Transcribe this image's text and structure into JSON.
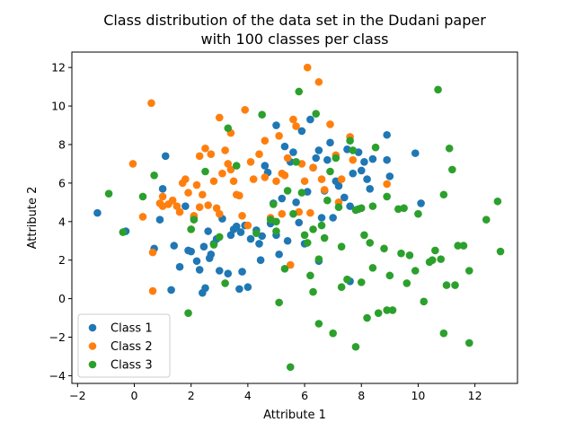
{
  "chart_data": {
    "type": "scatter",
    "title": "Class distribution of the data set in the Dudani paper\nwith 100 classes per class",
    "xlabel": "Attribute 1",
    "ylabel": "Attribute 2",
    "xlim": [
      -2.2,
      13.5
    ],
    "ylim": [
      -4.4,
      12.8
    ],
    "xticks": [
      -2,
      0,
      2,
      4,
      6,
      8,
      10,
      12
    ],
    "yticks": [
      -4,
      -2,
      0,
      2,
      4,
      6,
      8,
      10,
      12
    ],
    "grid": false,
    "legend_position": "lower-left",
    "series": [
      {
        "name": "Class 1",
        "color": "#1f77b4",
        "points": [
          [
            -1.3,
            4.45
          ],
          [
            -0.3,
            3.5
          ],
          [
            0.7,
            2.6
          ],
          [
            0.9,
            4.1
          ],
          [
            1.0,
            5.7
          ],
          [
            1.1,
            7.4
          ],
          [
            1.3,
            0.45
          ],
          [
            1.4,
            2.75
          ],
          [
            1.6,
            1.65
          ],
          [
            1.8,
            4.8
          ],
          [
            1.9,
            2.5
          ],
          [
            2.0,
            2.45
          ],
          [
            2.1,
            4.2
          ],
          [
            2.2,
            1.95
          ],
          [
            2.3,
            1.5
          ],
          [
            2.4,
            0.3
          ],
          [
            2.45,
            2.7
          ],
          [
            2.5,
            0.55
          ],
          [
            2.6,
            3.5
          ],
          [
            2.65,
            2.1
          ],
          [
            2.7,
            2.3
          ],
          [
            2.8,
            2.85
          ],
          [
            2.9,
            3.1
          ],
          [
            3.0,
            1.45
          ],
          [
            3.1,
            4.15
          ],
          [
            3.3,
            1.3
          ],
          [
            3.4,
            3.3
          ],
          [
            3.5,
            3.6
          ],
          [
            3.6,
            3.75
          ],
          [
            3.7,
            0.5
          ],
          [
            3.75,
            3.45
          ],
          [
            3.8,
            1.4
          ],
          [
            3.9,
            3.8
          ],
          [
            4.0,
            0.6
          ],
          [
            4.1,
            3.1
          ],
          [
            4.3,
            3.55
          ],
          [
            4.4,
            2.85
          ],
          [
            4.45,
            2.0
          ],
          [
            4.5,
            3.25
          ],
          [
            4.6,
            6.9
          ],
          [
            4.7,
            6.55
          ],
          [
            4.8,
            3.9
          ],
          [
            4.9,
            4.95
          ],
          [
            5.0,
            3.3
          ],
          [
            5.0,
            9.0
          ],
          [
            5.1,
            2.3
          ],
          [
            5.2,
            5.2
          ],
          [
            5.3,
            7.9
          ],
          [
            5.4,
            3.0
          ],
          [
            5.5,
            7.1
          ],
          [
            5.6,
            7.6
          ],
          [
            5.7,
            5.0
          ],
          [
            5.8,
            3.95
          ],
          [
            5.9,
            8.7
          ],
          [
            6.0,
            2.85
          ],
          [
            6.1,
            5.55
          ],
          [
            6.2,
            9.3
          ],
          [
            6.3,
            6.8
          ],
          [
            6.4,
            7.3
          ],
          [
            6.5,
            1.95
          ],
          [
            6.5,
            7.7
          ],
          [
            6.6,
            4.2
          ],
          [
            6.7,
            5.6
          ],
          [
            6.8,
            7.2
          ],
          [
            6.9,
            8.1
          ],
          [
            7.0,
            4.2
          ],
          [
            7.1,
            6.1
          ],
          [
            7.2,
            5.85
          ],
          [
            7.4,
            5.25
          ],
          [
            7.5,
            7.75
          ],
          [
            7.6,
            0.9
          ],
          [
            7.6,
            4.8
          ],
          [
            7.7,
            6.5
          ],
          [
            7.9,
            7.6
          ],
          [
            8.0,
            6.65
          ],
          [
            8.1,
            7.1
          ],
          [
            8.2,
            6.2
          ],
          [
            8.3,
            5.7
          ],
          [
            8.4,
            7.25
          ],
          [
            8.9,
            8.5
          ],
          [
            8.9,
            7.2
          ],
          [
            9.0,
            6.35
          ],
          [
            9.9,
            7.55
          ],
          [
            10.1,
            4.95
          ]
        ]
      },
      {
        "name": "Class 2",
        "color": "#ff7f0e",
        "points": [
          [
            -0.05,
            7.0
          ],
          [
            0.3,
            4.25
          ],
          [
            0.6,
            10.15
          ],
          [
            0.65,
            2.4
          ],
          [
            0.65,
            0.4
          ],
          [
            0.9,
            4.95
          ],
          [
            1.0,
            5.3
          ],
          [
            1.2,
            4.9
          ],
          [
            1.35,
            5.1
          ],
          [
            1.5,
            4.8
          ],
          [
            1.6,
            4.5
          ],
          [
            1.7,
            6.0
          ],
          [
            1.8,
            6.2
          ],
          [
            1.9,
            5.5
          ],
          [
            2.0,
            3.6
          ],
          [
            2.1,
            4.3
          ],
          [
            2.2,
            5.9
          ],
          [
            2.3,
            7.4
          ],
          [
            2.4,
            5.4
          ],
          [
            2.5,
            7.8
          ],
          [
            2.6,
            4.85
          ],
          [
            2.7,
            7.5
          ],
          [
            2.8,
            6.1
          ],
          [
            2.9,
            4.7
          ],
          [
            3.0,
            9.4
          ],
          [
            3.1,
            6.5
          ],
          [
            3.2,
            7.7
          ],
          [
            3.3,
            7.0
          ],
          [
            3.4,
            8.6
          ],
          [
            3.5,
            6.1
          ],
          [
            3.6,
            5.4
          ],
          [
            3.7,
            5.35
          ],
          [
            3.8,
            4.3
          ],
          [
            3.9,
            9.8
          ],
          [
            4.0,
            3.8
          ],
          [
            4.1,
            7.1
          ],
          [
            4.2,
            6.2
          ],
          [
            4.4,
            7.5
          ],
          [
            4.6,
            8.2
          ],
          [
            4.8,
            4.2
          ],
          [
            5.0,
            6.1
          ],
          [
            5.1,
            8.45
          ],
          [
            5.2,
            4.4
          ],
          [
            5.3,
            6.4
          ],
          [
            5.4,
            7.3
          ],
          [
            5.5,
            1.75
          ],
          [
            5.6,
            9.3
          ],
          [
            5.7,
            8.95
          ],
          [
            5.8,
            4.5
          ],
          [
            5.9,
            7.0
          ],
          [
            6.0,
            6.1
          ],
          [
            6.1,
            12.0
          ],
          [
            6.2,
            4.45
          ],
          [
            6.3,
            6.8
          ],
          [
            6.5,
            11.25
          ],
          [
            6.6,
            6.2
          ],
          [
            6.7,
            5.65
          ],
          [
            6.9,
            9.05
          ],
          [
            7.1,
            7.45
          ],
          [
            7.2,
            5.0
          ],
          [
            7.3,
            6.2
          ],
          [
            7.6,
            8.4
          ],
          [
            7.7,
            7.2
          ],
          [
            8.9,
            5.95
          ],
          [
            1.0,
            4.8
          ],
          [
            2.3,
            4.75
          ],
          [
            3.0,
            4.4
          ],
          [
            4.6,
            6.3
          ],
          [
            5.2,
            6.5
          ],
          [
            3.4,
            6.7
          ]
        ]
      },
      {
        "name": "Class 3",
        "color": "#2ca02c",
        "points": [
          [
            -0.9,
            5.45
          ],
          [
            -0.4,
            3.45
          ],
          [
            0.3,
            5.3
          ],
          [
            0.7,
            6.4
          ],
          [
            1.9,
            -0.75
          ],
          [
            2.0,
            3.6
          ],
          [
            2.1,
            4.1
          ],
          [
            2.5,
            6.6
          ],
          [
            2.8,
            2.8
          ],
          [
            3.0,
            3.2
          ],
          [
            3.2,
            0.8
          ],
          [
            3.3,
            8.85
          ],
          [
            3.6,
            6.9
          ],
          [
            4.3,
            3.4
          ],
          [
            4.5,
            9.55
          ],
          [
            4.8,
            4.1
          ],
          [
            4.9,
            4.9
          ],
          [
            5.0,
            4.0
          ],
          [
            5.1,
            -0.2
          ],
          [
            5.3,
            1.55
          ],
          [
            5.4,
            5.6
          ],
          [
            5.5,
            -3.55
          ],
          [
            5.6,
            4.4
          ],
          [
            5.7,
            7.1
          ],
          [
            5.8,
            10.75
          ],
          [
            5.9,
            5.5
          ],
          [
            6.0,
            3.3
          ],
          [
            6.1,
            2.9
          ],
          [
            6.2,
            1.2
          ],
          [
            6.3,
            0.35
          ],
          [
            6.4,
            9.6
          ],
          [
            6.5,
            2.05
          ],
          [
            6.5,
            -1.3
          ],
          [
            6.6,
            3.8
          ],
          [
            6.7,
            3.15
          ],
          [
            6.8,
            5.1
          ],
          [
            6.9,
            6.6
          ],
          [
            7.0,
            -1.8
          ],
          [
            7.1,
            7.3
          ],
          [
            7.2,
            4.75
          ],
          [
            7.3,
            2.7
          ],
          [
            7.3,
            0.6
          ],
          [
            7.5,
            1.0
          ],
          [
            7.6,
            8.2
          ],
          [
            7.7,
            7.7
          ],
          [
            7.8,
            -2.5
          ],
          [
            7.9,
            4.65
          ],
          [
            8.0,
            0.85
          ],
          [
            8.1,
            3.3
          ],
          [
            8.2,
            -1.0
          ],
          [
            8.3,
            2.9
          ],
          [
            8.4,
            1.6
          ],
          [
            8.5,
            7.85
          ],
          [
            8.6,
            -0.75
          ],
          [
            8.8,
            2.6
          ],
          [
            8.9,
            -0.6
          ],
          [
            8.9,
            5.3
          ],
          [
            9.0,
            1.2
          ],
          [
            9.1,
            -0.6
          ],
          [
            9.3,
            4.65
          ],
          [
            9.4,
            2.35
          ],
          [
            9.5,
            4.7
          ],
          [
            9.6,
            0.8
          ],
          [
            9.7,
            2.25
          ],
          [
            9.9,
            1.45
          ],
          [
            10.0,
            4.4
          ],
          [
            10.2,
            -0.15
          ],
          [
            10.4,
            1.9
          ],
          [
            10.5,
            2.0
          ],
          [
            10.6,
            2.5
          ],
          [
            10.7,
            10.85
          ],
          [
            10.8,
            2.05
          ],
          [
            10.9,
            -1.8
          ],
          [
            10.9,
            5.4
          ],
          [
            11.0,
            0.7
          ],
          [
            11.1,
            7.8
          ],
          [
            11.2,
            6.7
          ],
          [
            11.3,
            0.7
          ],
          [
            11.4,
            2.75
          ],
          [
            11.6,
            2.75
          ],
          [
            11.8,
            1.45
          ],
          [
            11.8,
            -2.3
          ],
          [
            12.4,
            4.1
          ],
          [
            12.8,
            5.05
          ],
          [
            12.9,
            2.45
          ],
          [
            7.8,
            4.6
          ],
          [
            8.0,
            4.7
          ],
          [
            8.4,
            4.8
          ],
          [
            6.3,
            3.6
          ],
          [
            5.0,
            3.5
          ]
        ]
      }
    ]
  }
}
